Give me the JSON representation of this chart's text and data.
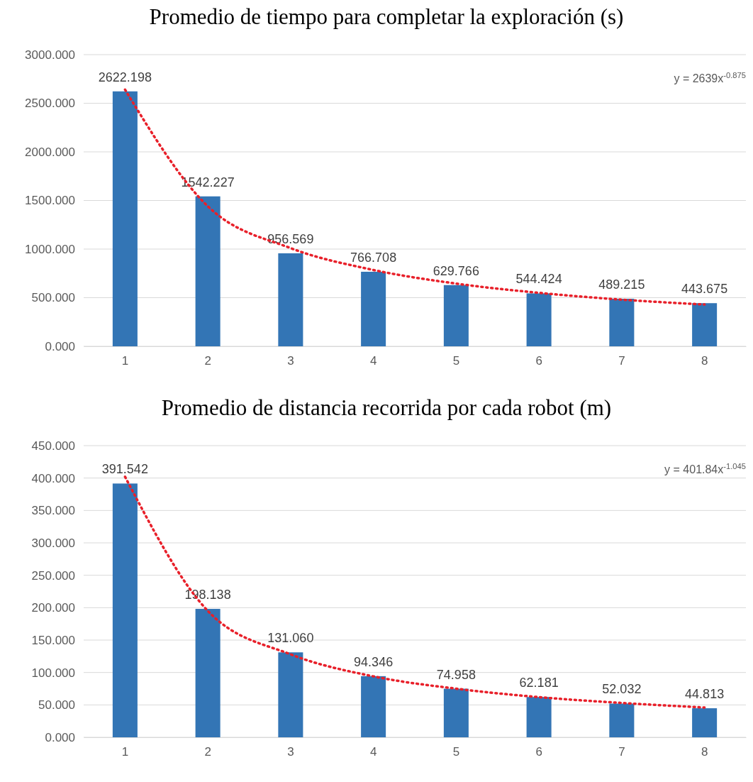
{
  "chart_data": [
    {
      "type": "bar",
      "title": "Promedio de tiempo para completar la exploración (s)",
      "categories": [
        "1",
        "2",
        "3",
        "4",
        "5",
        "6",
        "7",
        "8"
      ],
      "series": [
        {
          "color": "#3375b5",
          "values": [
            2622.198,
            1542.227,
            956.569,
            766.708,
            629.766,
            544.424,
            489.215,
            443.675
          ],
          "value_labels": [
            "2622.198",
            "1542.227",
            "956.569",
            "766.708",
            "629.766",
            "544.424",
            "489.215",
            "443.675"
          ]
        },
        {
          "type": "line",
          "color": "#e8202a",
          "line_style": "dotted",
          "x": [
            "1",
            "2",
            "3",
            "4",
            "5",
            "6",
            "7",
            "8"
          ],
          "values": [
            2640,
            1440,
            1010,
            785,
            645,
            550,
            480,
            430
          ]
        }
      ],
      "ylim": [
        0,
        3000
      ],
      "yticks": [
        {
          "value": 0,
          "label": "0.000"
        },
        {
          "value": 500,
          "label": "500.000"
        },
        {
          "value": 1000,
          "label": "1000.000"
        },
        {
          "value": 1500,
          "label": "1500.000"
        },
        {
          "value": 2000,
          "label": "2000.000"
        },
        {
          "value": 2500,
          "label": "2500.000"
        },
        {
          "value": 3000,
          "label": "3000.000"
        }
      ],
      "grid": "y",
      "annotations": [
        "y = 2639x$^{-0.875}$"
      ]
    },
    {
      "type": "bar",
      "title": "Promedio de distancia recorrida por cada robot (m)",
      "categories": [
        "1",
        "2",
        "3",
        "4",
        "5",
        "6",
        "7",
        "8"
      ],
      "series": [
        {
          "color": "#3375b5",
          "values": [
            391.542,
            198.138,
            131.06,
            94.346,
            74.958,
            62.181,
            52.032,
            44.813
          ],
          "value_labels": [
            "391.542",
            "198.138",
            "131.060",
            "94.346",
            "74.958",
            "62.181",
            "52.032",
            "44.813"
          ]
        },
        {
          "type": "line",
          "color": "#e8202a",
          "line_style": "dotted",
          "x": [
            "1",
            "2",
            "3",
            "4",
            "5",
            "6",
            "7",
            "8"
          ],
          "values": [
            402,
            195,
            128,
            94,
            75,
            62,
            53,
            46
          ]
        }
      ],
      "ylim": [
        0,
        450
      ],
      "yticks": [
        {
          "value": 0,
          "label": "0.000"
        },
        {
          "value": 50,
          "label": "50.000"
        },
        {
          "value": 100,
          "label": "100.000"
        },
        {
          "value": 150,
          "label": "150.000"
        },
        {
          "value": 200,
          "label": "200.000"
        },
        {
          "value": 250,
          "label": "250.000"
        },
        {
          "value": 300,
          "label": "300.000"
        },
        {
          "value": 350,
          "label": "350.000"
        },
        {
          "value": 400,
          "label": "400.000"
        },
        {
          "value": 450,
          "label": "450.000"
        }
      ],
      "grid": "y",
      "annotations": [
        "y = 401.84x$^{-1.045}$"
      ]
    }
  ]
}
